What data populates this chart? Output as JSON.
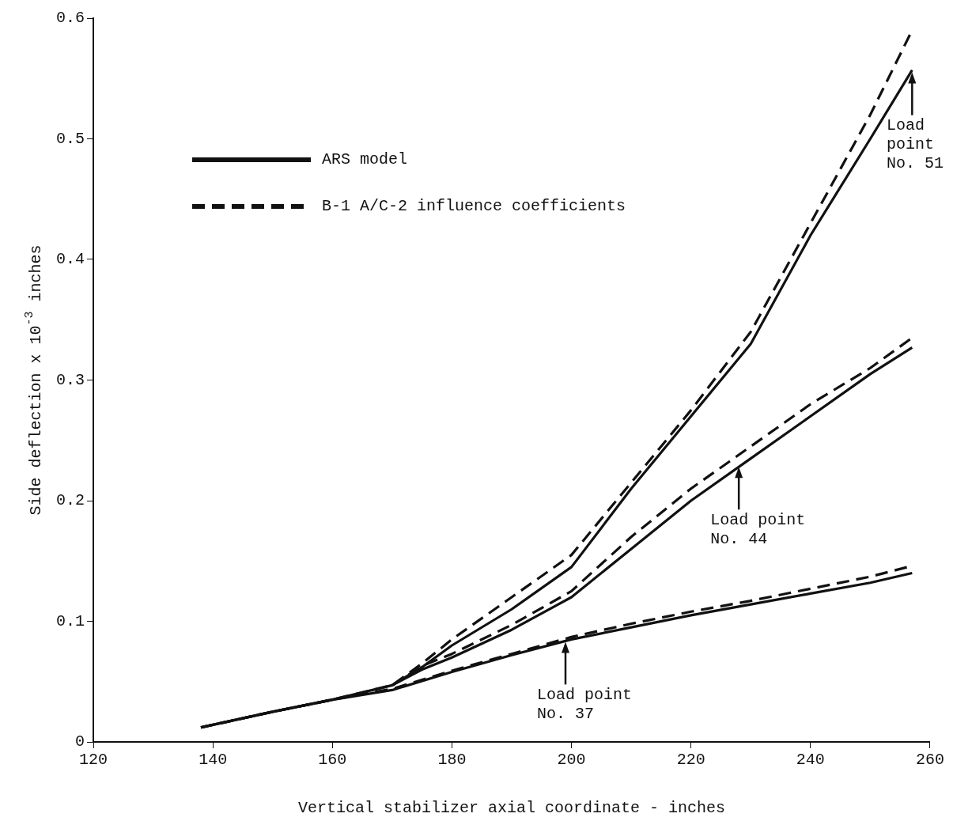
{
  "chart_data": {
    "type": "line",
    "xlabel": "Vertical stabilizer axial coordinate - inches",
    "ylabel": "Side deflection x 10$^{-3}$ inches",
    "xlim": [
      120,
      260
    ],
    "ylim": [
      0,
      0.6
    ],
    "xticks": [
      120,
      140,
      160,
      180,
      200,
      220,
      240,
      260
    ],
    "yticks": [
      0,
      0.1,
      0.2,
      0.3,
      0.4,
      0.5,
      0.6
    ],
    "grid": false,
    "legend": "top left",
    "marker": "none",
    "series": [
      {
        "name": "ARS model",
        "color": "#111111",
        "line_style": "solid",
        "x": [
          138,
          150,
          160,
          170,
          175,
          180,
          190,
          200,
          210,
          220,
          230,
          240,
          250,
          257
        ],
        "values": [
          0.012,
          0.025,
          0.035,
          0.047,
          0.062,
          0.08,
          0.11,
          0.145,
          0.21,
          0.27,
          0.33,
          0.42,
          0.5,
          0.557
        ]
      },
      {
        "name": "B-1 A/C-2 influence coefficients",
        "color": "#111111",
        "line_style": "dashed",
        "x": [
          138,
          150,
          160,
          170,
          175,
          180,
          190,
          200,
          210,
          220,
          230,
          240,
          250,
          257
        ],
        "values": [
          0.012,
          0.025,
          0.035,
          0.047,
          0.065,
          0.085,
          0.12,
          0.155,
          0.215,
          0.275,
          0.34,
          0.43,
          0.52,
          0.59
        ]
      },
      {
        "color": "#111111",
        "line_style": "solid",
        "x": [
          170,
          175,
          180,
          190,
          200,
          210,
          220,
          230,
          240,
          250,
          257
        ],
        "values": [
          0.047,
          0.06,
          0.07,
          0.093,
          0.12,
          0.16,
          0.2,
          0.235,
          0.27,
          0.305,
          0.327
        ]
      },
      {
        "color": "#111111",
        "line_style": "dashed",
        "x": [
          170,
          175,
          180,
          190,
          200,
          210,
          220,
          230,
          240,
          250,
          257
        ],
        "values": [
          0.047,
          0.063,
          0.073,
          0.097,
          0.125,
          0.17,
          0.21,
          0.245,
          0.28,
          0.31,
          0.335
        ]
      },
      {
        "color": "#111111",
        "line_style": "solid",
        "x": [
          138,
          150,
          160,
          170,
          180,
          190,
          200,
          210,
          220,
          230,
          240,
          250,
          257
        ],
        "values": [
          0.012,
          0.025,
          0.035,
          0.043,
          0.058,
          0.072,
          0.085,
          0.095,
          0.105,
          0.114,
          0.123,
          0.132,
          0.14
        ]
      },
      {
        "color": "#111111",
        "line_style": "dashed",
        "x": [
          138,
          150,
          160,
          170,
          180,
          190,
          200,
          210,
          220,
          230,
          240,
          250,
          257
        ],
        "values": [
          0.012,
          0.025,
          0.035,
          0.044,
          0.059,
          0.073,
          0.087,
          0.098,
          0.108,
          0.117,
          0.127,
          0.137,
          0.146
        ]
      }
    ],
    "annotations": [
      {
        "text": "Load\npoint\nNo. 51",
        "x": 257,
        "y": 0.557
      },
      {
        "text": "Load point\nNo. 44",
        "x": 228,
        "y": 0.23
      },
      {
        "text": "Load point\nNo. 37",
        "x": 199,
        "y": 0.085
      }
    ]
  }
}
